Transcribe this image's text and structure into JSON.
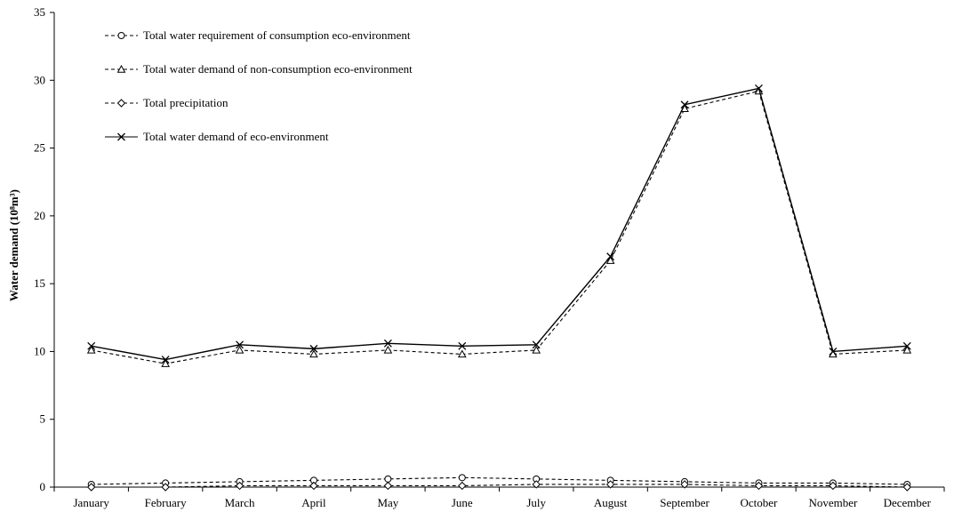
{
  "chart_data": {
    "type": "line",
    "title": "",
    "xlabel": "",
    "ylabel": "Water demand (10⁸m³)",
    "ylim": [
      0,
      35
    ],
    "y_ticks": [
      0,
      5,
      10,
      15,
      20,
      25,
      30,
      35
    ],
    "grid": false,
    "legend_position": "top-left",
    "categories": [
      "January",
      "February",
      "March",
      "April",
      "May",
      "June",
      "July",
      "August",
      "September",
      "October",
      "November",
      "December"
    ],
    "series": [
      {
        "name": "Total water requirement of consumption eco-environment",
        "marker": "circle",
        "line_style": "dashed",
        "values": [
          0.2,
          0.3,
          0.4,
          0.5,
          0.6,
          0.7,
          0.6,
          0.5,
          0.4,
          0.3,
          0.3,
          0.2
        ]
      },
      {
        "name": "Total water demand of non-consumption eco-environment",
        "marker": "triangle",
        "line_style": "dashed",
        "values": [
          10.1,
          9.1,
          10.1,
          9.8,
          10.1,
          9.8,
          10.1,
          16.7,
          27.9,
          29.2,
          9.8,
          10.1
        ]
      },
      {
        "name": "Total precipitation",
        "marker": "diamond",
        "line_style": "dashed",
        "values": [
          0.0,
          0.0,
          0.1,
          0.1,
          0.1,
          0.1,
          0.2,
          0.2,
          0.2,
          0.1,
          0.1,
          0.0
        ]
      },
      {
        "name": "Total water demand of eco-environment",
        "marker": "x",
        "line_style": "solid",
        "values": [
          10.4,
          9.4,
          10.5,
          10.2,
          10.6,
          10.4,
          10.5,
          17.0,
          28.2,
          29.4,
          10.0,
          10.4
        ]
      }
    ],
    "colors": {
      "line": "#000000",
      "background": "#ffffff"
    }
  }
}
